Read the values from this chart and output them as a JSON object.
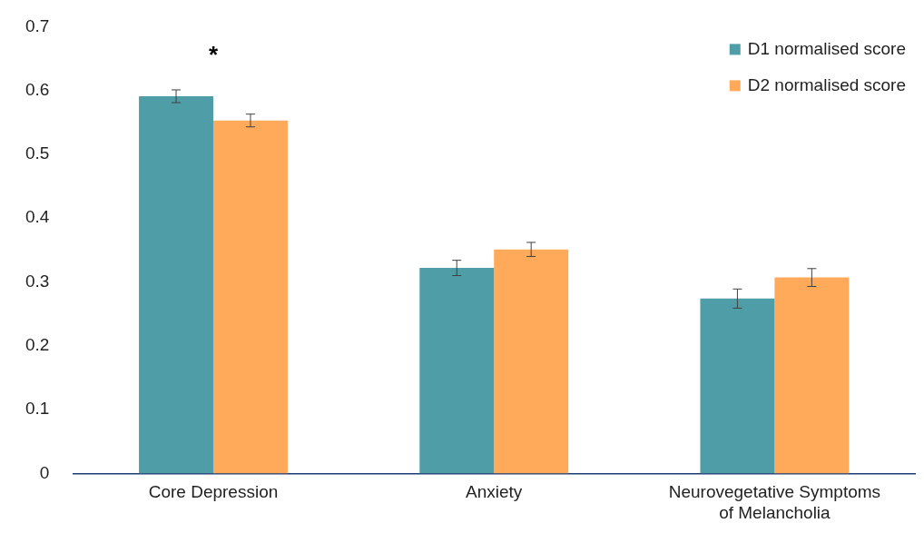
{
  "chart_data": {
    "type": "bar",
    "categories": [
      "Core Depression",
      "Anxiety",
      "Neurovegetative Symptoms of Melancholia"
    ],
    "series": [
      {
        "name": "D1 normalised score",
        "color": "#4f9da6",
        "values": [
          0.591,
          0.322,
          0.274
        ],
        "errors": [
          0.01,
          0.012,
          0.015
        ]
      },
      {
        "name": "D2 normalised score",
        "color": "#ffaa5a",
        "values": [
          0.553,
          0.351,
          0.307
        ],
        "errors": [
          0.01,
          0.011,
          0.014
        ]
      }
    ],
    "ylim": [
      0,
      0.7
    ],
    "yticks": [
      0,
      0.1,
      0.2,
      0.3,
      0.4,
      0.5,
      0.6,
      0.7
    ],
    "grid": false,
    "legend": "top right",
    "annotations": [
      "*"
    ]
  }
}
